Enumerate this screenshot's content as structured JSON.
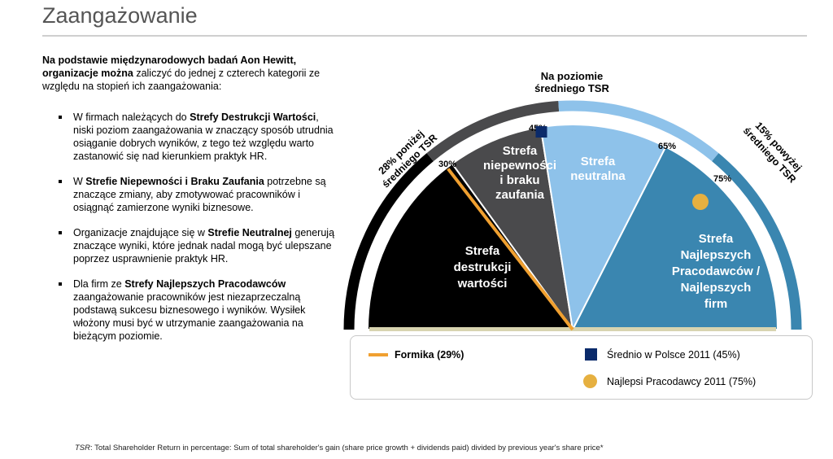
{
  "title": "Zaangażowanie",
  "intro": {
    "bold": "Na podstawie międzynarodowych badań Aon Hewitt, organizacje można",
    "rest": " zaliczyć do jednej z czterech kategorii ze względu na stopień ich zaangażowania:"
  },
  "bullets": [
    {
      "pre": "W firmach należących do ",
      "bold": "Strefy Destrukcji Wartości",
      "post": ", niski poziom zaangażowania w znaczący sposób utrudnia osiąganie dobrych wyników, z tego też względu warto zastanowić się nad kierunkiem praktyk HR."
    },
    {
      "pre": "W ",
      "bold": "Strefie Niepewności i Braku Zaufania",
      "post": " potrzebne są znaczące zmiany, aby zmotywować pracowników i osiągnąć zamierzone wyniki biznesowe."
    },
    {
      "pre": "Organizacje znajdujące się w ",
      "bold": "Strefie Neutralnej",
      "post": " generują znaczące wyniki, które jednak nadal mogą być ulepszane poprzez usprawnienie praktyk HR."
    },
    {
      "pre": "Dla firm ze ",
      "bold": "Strefy Najlepszych Pracodawców",
      "post": " zaangażowanie pracowników jest niezaprzeczalną podstawą sukcesu biznesowego i wyników. Wysiłek włożony musi być w utrzymanie zaangażowania na bieżącym poziomie."
    }
  ],
  "chart": {
    "top_label_1": "Na poziomie",
    "top_label_2": "średniego TSR",
    "left_arc_1": "28% poniżej",
    "left_arc_2": "średniego TSR",
    "right_arc_1": "15% powyżej",
    "right_arc_2": "średniego TSR",
    "thresholds": [
      30,
      45,
      65,
      75
    ],
    "threshold_labels": [
      "30%",
      "45%",
      "65%",
      "75%"
    ],
    "zones": [
      {
        "lines": [
          "Strefa",
          "destrukcji",
          "wartości"
        ],
        "color": "#000000"
      },
      {
        "lines": [
          "Strefa",
          "niepewności",
          "i braku",
          "zaufania"
        ],
        "color": "#4a4a4c"
      },
      {
        "lines": [
          "Strefa",
          "neutralna"
        ],
        "color": "#8ec2ea"
      },
      {
        "lines": [
          "Strefa",
          "Najlepszych",
          "Pracodawców  /",
          "Najlepszych",
          "firm"
        ],
        "color": "#3a86b0"
      }
    ],
    "formika_value": 29,
    "average_poland_value": 45,
    "best_employers_value": 75
  },
  "legend": {
    "formika": "Formika (29%)",
    "average": "Średnio w Polsce 2011 (45%)",
    "best": "Najlepsi Pracodawcy 2011 (75%)"
  },
  "footer": {
    "tsr": "TSR",
    "text": ": Total Shareholder Return in percentage: Sum of total shareholder's gain (share price growth + dividends paid) divided by previous year's share price*"
  }
}
